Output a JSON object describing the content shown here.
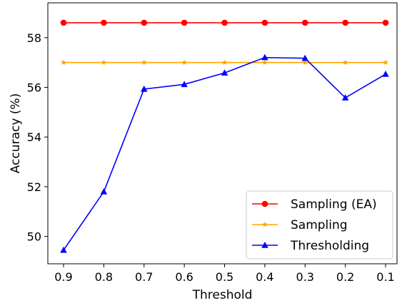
{
  "chart_data": {
    "type": "line",
    "xlabel": "Threshold",
    "ylabel": "Accuracy (%)",
    "x": [
      0.9,
      0.8,
      0.7,
      0.6,
      0.5,
      0.4,
      0.3,
      0.2,
      0.1
    ],
    "x_tick_labels": [
      "0.9",
      "0.8",
      "0.7",
      "0.6",
      "0.5",
      "0.4",
      "0.3",
      "0.2",
      "0.1"
    ],
    "y_ticks": [
      50,
      52,
      54,
      56,
      58
    ],
    "y_tick_labels": [
      "50",
      "52",
      "54",
      "56",
      "58"
    ],
    "ylim": [
      48.9,
      59.4
    ],
    "x_axis_reversed": true,
    "grid": false,
    "legend_position": "bottom-right",
    "series": [
      {
        "name": "Sampling (EA)",
        "color": "#ff0000",
        "marker": "circle",
        "values": [
          58.6,
          58.6,
          58.6,
          58.6,
          58.6,
          58.6,
          58.6,
          58.6,
          58.6
        ]
      },
      {
        "name": "Sampling",
        "color": "#ffa500",
        "marker": "star",
        "values": [
          57.0,
          57.0,
          57.0,
          57.0,
          57.0,
          57.0,
          57.0,
          57.0,
          57.0
        ]
      },
      {
        "name": "Thresholding",
        "color": "#0000ff",
        "marker": "triangle",
        "values": [
          49.45,
          51.8,
          55.93,
          56.12,
          56.58,
          57.2,
          57.17,
          55.58,
          56.53
        ]
      }
    ]
  }
}
